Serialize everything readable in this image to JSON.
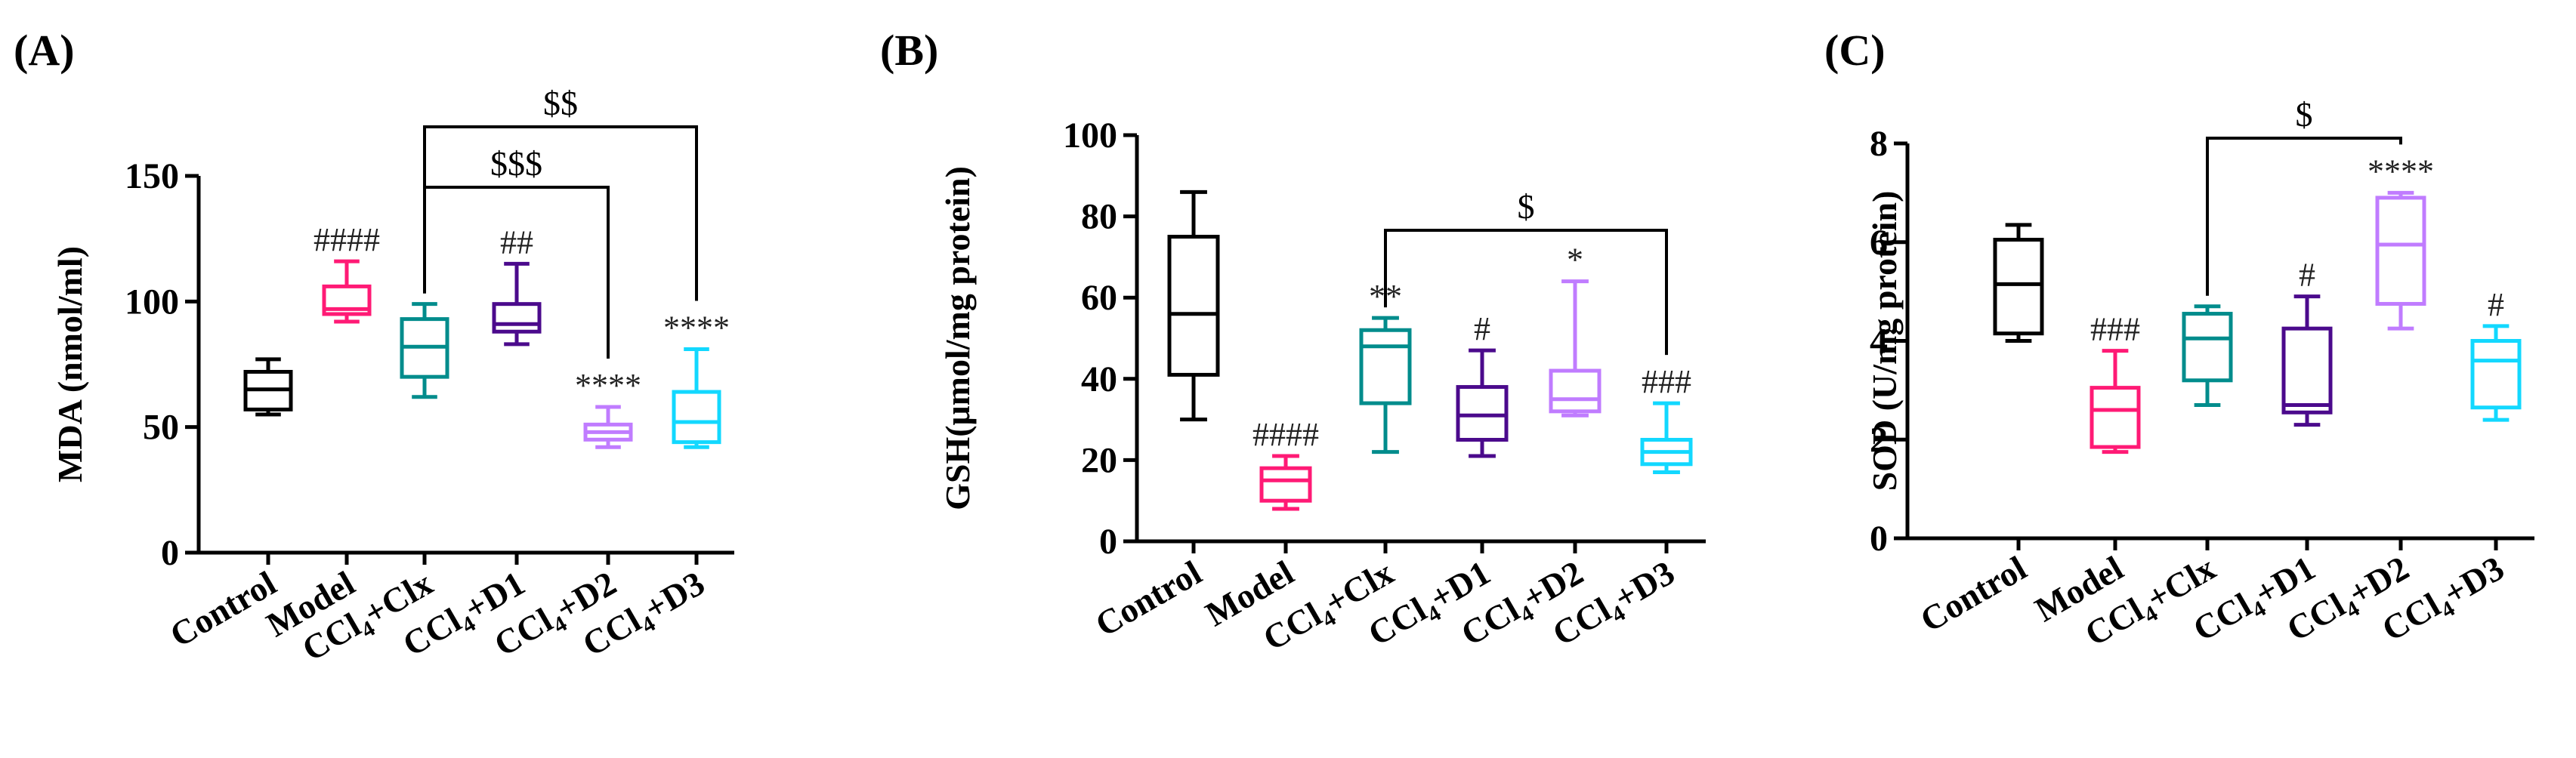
{
  "figure": {
    "panels": [
      {
        "panel_label": "(A)",
        "chart_data": {
          "type": "box",
          "title": "",
          "ylabel": "MDA (nmol/ml)",
          "xlabel": "",
          "ylim": [
            0,
            150
          ],
          "yticks": [
            0,
            50,
            100,
            150
          ],
          "categories": [
            {
              "main": "Control",
              "sub": "",
              "rest": ""
            },
            {
              "main": "Model",
              "sub": "",
              "rest": ""
            },
            {
              "main": "CCl",
              "sub": "4",
              "rest": "+Clx"
            },
            {
              "main": "CCl",
              "sub": "4",
              "rest": "+D1"
            },
            {
              "main": "CCl",
              "sub": "4",
              "rest": "+D2"
            },
            {
              "main": "CCl",
              "sub": "4",
              "rest": "+D3"
            }
          ],
          "series": [
            {
              "name": "Control",
              "color": "#000000",
              "min": 55,
              "q1": 57,
              "median": 65,
              "q3": 72,
              "max": 77,
              "label": ""
            },
            {
              "name": "Model",
              "color": "#ff1a75",
              "min": 92,
              "q1": 95,
              "median": 97,
              "q3": 106,
              "max": 116,
              "label": "####"
            },
            {
              "name": "CCl4+Clx",
              "color": "#008c8c",
              "min": 62,
              "q1": 70,
              "median": 82,
              "q3": 93,
              "max": 99,
              "label": ""
            },
            {
              "name": "CCl4+D1",
              "color": "#4b0a8c",
              "min": 83,
              "q1": 88,
              "median": 91,
              "q3": 99,
              "max": 115,
              "label": "##"
            },
            {
              "name": "CCl4+D2",
              "color": "#c07cff",
              "min": 42,
              "q1": 45,
              "median": 48,
              "q3": 51,
              "max": 58,
              "label": "****"
            },
            {
              "name": "CCl4+D3",
              "color": "#12d8ff",
              "min": 42,
              "q1": 44,
              "median": 52,
              "q3": 64,
              "max": 81,
              "label": "****"
            }
          ],
          "comparisons": [
            {
              "from": 2,
              "to": 4,
              "label": "$$$"
            },
            {
              "from": 2,
              "to": 5,
              "label": "$$"
            }
          ]
        }
      },
      {
        "panel_label": "(B)",
        "chart_data": {
          "type": "box",
          "title": "",
          "ylabel": "GSH(μmol/mg protein)",
          "xlabel": "",
          "ylim": [
            0,
            100
          ],
          "yticks": [
            0,
            20,
            40,
            60,
            80,
            100
          ],
          "categories": [
            {
              "main": "Control",
              "sub": "",
              "rest": ""
            },
            {
              "main": "Model",
              "sub": "",
              "rest": ""
            },
            {
              "main": "CCl",
              "sub": "4",
              "rest": "+Clx"
            },
            {
              "main": "CCl",
              "sub": "4",
              "rest": "+D1"
            },
            {
              "main": "CCl",
              "sub": "4",
              "rest": "+D2"
            },
            {
              "main": "CCl",
              "sub": "4",
              "rest": "+D3"
            }
          ],
          "series": [
            {
              "name": "Control",
              "color": "#000000",
              "min": 30,
              "q1": 41,
              "median": 56,
              "q3": 75,
              "max": 86,
              "label": ""
            },
            {
              "name": "Model",
              "color": "#ff1a75",
              "min": 8,
              "q1": 10,
              "median": 15,
              "q3": 18,
              "max": 21,
              "label": "####"
            },
            {
              "name": "CCl4+Clx",
              "color": "#008c8c",
              "min": 22,
              "q1": 34,
              "median": 48,
              "q3": 52,
              "max": 55,
              "label": "**"
            },
            {
              "name": "CCl4+D1",
              "color": "#4b0a8c",
              "min": 21,
              "q1": 25,
              "median": 31,
              "q3": 38,
              "max": 47,
              "label": "#"
            },
            {
              "name": "CCl4+D2",
              "color": "#c07cff",
              "min": 31,
              "q1": 32,
              "median": 35,
              "q3": 42,
              "max": 64,
              "label": "*"
            },
            {
              "name": "CCl4+D3",
              "color": "#12d8ff",
              "min": 17,
              "q1": 19,
              "median": 22,
              "q3": 25,
              "max": 34,
              "label": "###"
            }
          ],
          "comparisons": [
            {
              "from": 2,
              "to": 5,
              "label": "$"
            }
          ]
        }
      },
      {
        "panel_label": "(C)",
        "chart_data": {
          "type": "box",
          "title": "",
          "ylabel": "SOD (U/mg protein)",
          "xlabel": "",
          "ylim": [
            0,
            8
          ],
          "yticks": [
            0,
            2,
            4,
            6,
            8
          ],
          "categories": [
            {
              "main": "Control",
              "sub": "",
              "rest": ""
            },
            {
              "main": "Model",
              "sub": "",
              "rest": ""
            },
            {
              "main": "CCl",
              "sub": "4",
              "rest": "+Clx"
            },
            {
              "main": "CCl",
              "sub": "4",
              "rest": "+D1"
            },
            {
              "main": "CCl",
              "sub": "4",
              "rest": "+D2"
            },
            {
              "main": "CCl",
              "sub": "4",
              "rest": "+D3"
            }
          ],
          "series": [
            {
              "name": "Control",
              "color": "#000000",
              "min": 4.0,
              "q1": 4.15,
              "median": 5.15,
              "q3": 6.05,
              "max": 6.35,
              "label": ""
            },
            {
              "name": "Model",
              "color": "#ff1a75",
              "min": 1.75,
              "q1": 1.85,
              "median": 2.6,
              "q3": 3.05,
              "max": 3.8,
              "label": "###"
            },
            {
              "name": "CCl4+Clx",
              "color": "#008c8c",
              "min": 2.7,
              "q1": 3.2,
              "median": 4.05,
              "q3": 4.55,
              "max": 4.7,
              "label": ""
            },
            {
              "name": "CCl4+D1",
              "color": "#4b0a8c",
              "min": 2.3,
              "q1": 2.55,
              "median": 2.7,
              "q3": 4.25,
              "max": 4.9,
              "label": "#"
            },
            {
              "name": "CCl4+D2",
              "color": "#c07cff",
              "min": 4.25,
              "q1": 4.75,
              "median": 5.95,
              "q3": 6.9,
              "max": 7.0,
              "label": "****"
            },
            {
              "name": "CCl4+D3",
              "color": "#12d8ff",
              "min": 2.4,
              "q1": 2.65,
              "median": 3.6,
              "q3": 4.0,
              "max": 4.3,
              "label": "#"
            }
          ],
          "comparisons": [
            {
              "from": 2,
              "to": 4,
              "label": "$"
            }
          ]
        }
      }
    ]
  }
}
